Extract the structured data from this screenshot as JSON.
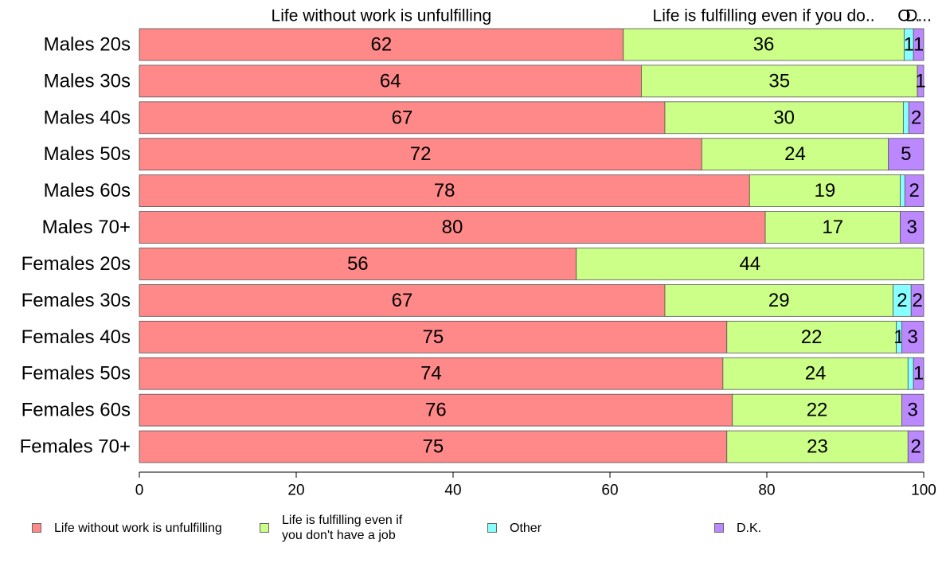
{
  "chart_data": {
    "type": "bar",
    "orientation": "horizontal",
    "stacked": true,
    "categories": [
      "Males 20s",
      "Males 30s",
      "Males 40s",
      "Males 50s",
      "Males 60s",
      "Males 70+",
      "Females 20s",
      "Females 30s",
      "Females 40s",
      "Females 50s",
      "Females 60s",
      "Females 70+"
    ],
    "series": [
      {
        "name": "Life without work is unfulfilling",
        "color": "#ff8888",
        "values": [
          61.7,
          64.0,
          67.0,
          71.7,
          77.8,
          79.8,
          55.7,
          67.0,
          74.9,
          74.4,
          75.6,
          74.9
        ],
        "labels": [
          "62",
          "64",
          "67",
          "72",
          "78",
          "80",
          "56",
          "67",
          "75",
          "74",
          "76",
          "75"
        ]
      },
      {
        "name": "Life is fulfilling even if you don't have a job",
        "color": "#ccff88",
        "values": [
          35.8,
          35.2,
          30.4,
          23.8,
          19.2,
          17.2,
          44.3,
          29.1,
          21.6,
          23.6,
          21.6,
          23.1
        ],
        "labels": [
          "36",
          "35",
          "30",
          "24",
          "19",
          "17",
          "44",
          "29",
          "22",
          "24",
          "22",
          "23"
        ]
      },
      {
        "name": "Other",
        "color": "#88ffff",
        "values": [
          1.2,
          0,
          0.7,
          0,
          0.6,
          0,
          0,
          2.3,
          0.7,
          0.7,
          0,
          0
        ],
        "labels": [
          "1",
          "",
          "",
          "",
          "",
          "",
          "",
          "2",
          "1",
          "",
          "",
          ""
        ]
      },
      {
        "name": "D.K.",
        "color": "#bb88ff",
        "values": [
          1.3,
          0.8,
          1.9,
          4.5,
          2.4,
          3.0,
          0,
          1.6,
          2.8,
          1.3,
          2.8,
          2.0
        ],
        "labels": [
          "1",
          "1",
          "2",
          "5",
          "2",
          "3",
          "",
          "2",
          "3",
          "1",
          "3",
          "2"
        ]
      }
    ],
    "top_labels": [
      "Life without work is unfulfilling",
      "Life is fulfilling even if you do..",
      "O..",
      "D..."
    ],
    "xlim": [
      0,
      100
    ],
    "xticks": [
      0,
      20,
      40,
      60,
      80,
      100
    ],
    "legend_position": "bottom",
    "grid": false
  },
  "legend": [
    {
      "label": "Life without work is unfulfilling",
      "color": "#ff8888"
    },
    {
      "label": "Life is fulfilling even if\nyou don't have a job",
      "color": "#ccff88"
    },
    {
      "label": "Other",
      "color": "#88ffff"
    },
    {
      "label": "D.K.",
      "color": "#bb88ff"
    }
  ]
}
